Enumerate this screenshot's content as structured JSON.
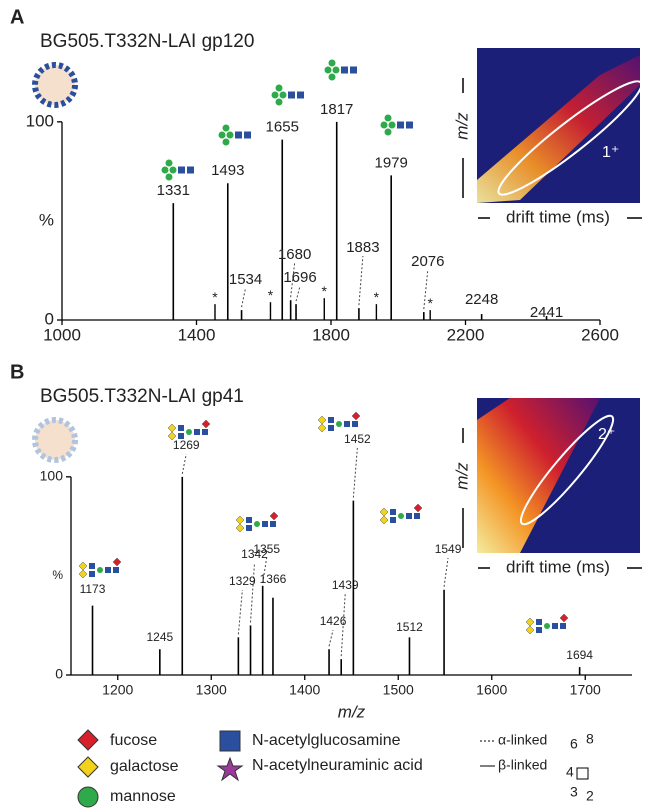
{
  "chart_data": [
    {
      "type": "stem",
      "panel": "A",
      "title": "BG505.T332N-LAI gp120",
      "x": [
        1331,
        1493,
        1655,
        1817,
        1979,
        1534,
        1680,
        1696,
        1883,
        2076,
        2248,
        2441
      ],
      "values": [
        59,
        69,
        91,
        100,
        73,
        5,
        10,
        8,
        6,
        4,
        3,
        2
      ],
      "starred": {
        "label": "*",
        "x": [
          1455,
          1620,
          1780,
          1935,
          2095
        ],
        "values": [
          8,
          9,
          11,
          8,
          5
        ]
      },
      "xlim": [
        1000,
        2600
      ],
      "xticks": [
        1000,
        1400,
        1800,
        2200,
        2600
      ],
      "ylim": [
        0,
        110
      ],
      "yticks": [
        0,
        100
      ],
      "ylabel": "%",
      "color": "#000000",
      "inset": {
        "ylabel": "m/z",
        "xlabel": "drift time (ms)",
        "charge": "1⁺"
      }
    },
    {
      "type": "stem",
      "panel": "B",
      "title": "BG505.T332N-LAI gp41",
      "x": [
        1173,
        1269,
        1355,
        1366,
        1342,
        1329,
        1245,
        1426,
        1439,
        1452,
        1512,
        1549,
        1694
      ],
      "values": [
        35,
        100,
        45,
        39,
        25,
        19,
        13,
        13,
        8,
        88,
        19,
        43,
        4
      ],
      "xlim": [
        1150,
        1750
      ],
      "xticks": [
        1200,
        1300,
        1400,
        1500,
        1600,
        1700
      ],
      "xlabel": "m/z",
      "ylim": [
        0,
        110
      ],
      "yticks": [
        0,
        100
      ],
      "ylabel": "%",
      "color": "#000000",
      "inset": {
        "ylabel": "m/z",
        "xlabel": "drift time (ms)",
        "charge": "2⁺"
      }
    }
  ],
  "legend": {
    "items": [
      "fucose",
      "galactose",
      "mannose",
      "N-acetylglucosamine",
      "N-acetylneuraminic acid"
    ],
    "linkages": [
      "α-linked",
      "β-linked"
    ],
    "positions": [
      "6",
      "8",
      "4",
      "3",
      "2"
    ]
  }
}
